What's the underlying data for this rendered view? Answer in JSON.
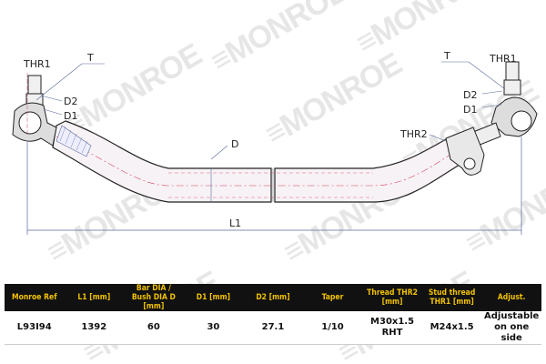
{
  "brand": {
    "logo_text": "MONROE"
  },
  "drawing": {
    "labels": {
      "thr1_left": "THR1",
      "t_left": "T",
      "d2_left": "D2",
      "d1_left": "D1",
      "d": "D",
      "thr2": "THR2",
      "l1": "L1",
      "thr1_right": "THR1",
      "t_right": "T",
      "d2_right": "D2",
      "d1_right": "D1"
    },
    "colors": {
      "outline": "#222222",
      "dimension": "#5a6a9a",
      "centerline": "#d04060",
      "tube_fill": "#f7f2f5"
    }
  },
  "table": {
    "headers": [
      "Monroe Ref",
      "L1 [mm]",
      "Bar DIA / Bush DIA D [mm]",
      "D1 [mm]",
      "D2 [mm]",
      "Taper",
      "Thread THR2 [mm]",
      "Stud thread THR1 [mm]",
      "Adjust."
    ],
    "rows": [
      [
        "L93I94",
        "1392",
        "60",
        "30",
        "27.1",
        "1/10",
        "M30x1.5 RHT",
        "M24x1.5",
        "Adjustable on one side"
      ]
    ],
    "header_bg": "#111111",
    "header_color": "#f2c200"
  }
}
